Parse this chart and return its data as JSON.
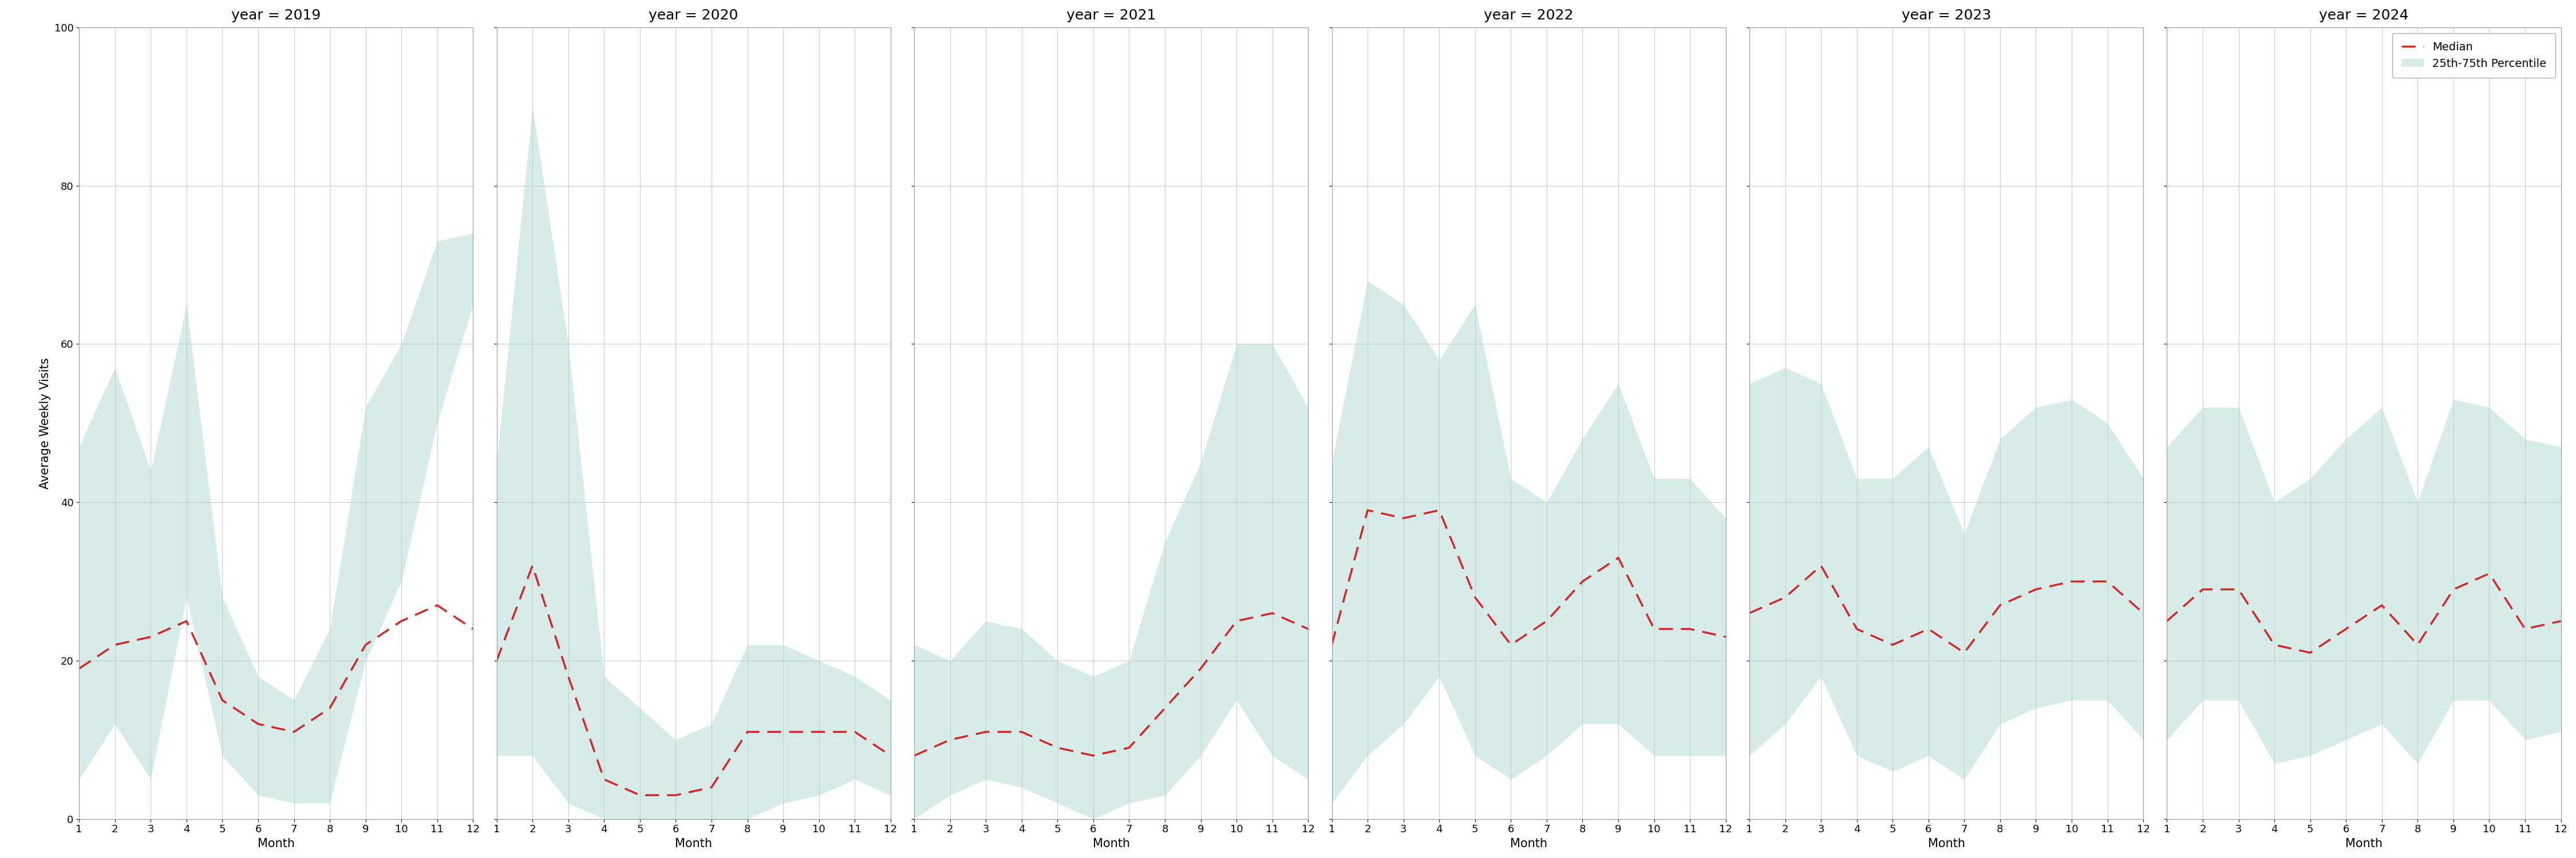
{
  "years": [
    2019,
    2020,
    2021,
    2022,
    2023,
    2024
  ],
  "months": [
    1,
    2,
    3,
    4,
    5,
    6,
    7,
    8,
    9,
    10,
    11,
    12
  ],
  "median": {
    "2019": [
      19,
      22,
      23,
      25,
      15,
      12,
      11,
      14,
      22,
      25,
      27,
      24
    ],
    "2020": [
      20,
      32,
      18,
      5,
      3,
      3,
      4,
      11,
      11,
      11,
      11,
      8
    ],
    "2021": [
      8,
      10,
      11,
      11,
      9,
      8,
      9,
      14,
      19,
      25,
      26,
      24
    ],
    "2022": [
      22,
      39,
      38,
      39,
      28,
      22,
      25,
      30,
      33,
      24,
      24,
      23
    ],
    "2023": [
      26,
      28,
      32,
      24,
      22,
      24,
      21,
      27,
      29,
      30,
      30,
      26
    ],
    "2024": [
      25,
      29,
      29,
      22,
      21,
      24,
      27,
      22,
      29,
      31,
      24,
      25
    ]
  },
  "p25": {
    "2019": [
      5,
      12,
      5,
      28,
      8,
      3,
      2,
      2,
      20,
      30,
      50,
      65
    ],
    "2020": [
      8,
      8,
      2,
      0,
      0,
      0,
      0,
      0,
      2,
      3,
      5,
      3
    ],
    "2021": [
      0,
      3,
      5,
      4,
      2,
      0,
      2,
      3,
      8,
      15,
      8,
      5
    ],
    "2022": [
      2,
      8,
      12,
      18,
      8,
      5,
      8,
      12,
      12,
      8,
      8,
      8
    ],
    "2023": [
      8,
      12,
      18,
      8,
      6,
      8,
      5,
      12,
      14,
      15,
      15,
      10
    ],
    "2024": [
      10,
      15,
      15,
      7,
      8,
      10,
      12,
      7,
      15,
      15,
      10,
      11
    ]
  },
  "p75": {
    "2019": [
      47,
      57,
      44,
      65,
      28,
      18,
      15,
      24,
      52,
      60,
      73,
      74
    ],
    "2020": [
      45,
      90,
      60,
      18,
      14,
      10,
      12,
      22,
      22,
      20,
      18,
      15
    ],
    "2021": [
      22,
      20,
      25,
      24,
      20,
      18,
      20,
      35,
      45,
      60,
      60,
      52
    ],
    "2022": [
      45,
      68,
      65,
      58,
      65,
      43,
      40,
      48,
      55,
      43,
      43,
      38
    ],
    "2023": [
      55,
      57,
      55,
      43,
      43,
      47,
      36,
      48,
      52,
      53,
      50,
      43
    ],
    "2024": [
      47,
      52,
      52,
      40,
      43,
      48,
      52,
      40,
      53,
      52,
      48,
      47
    ]
  },
  "fill_color": "#a8d5cc",
  "fill_alpha": 0.45,
  "line_color": "#d62728",
  "ylim": [
    0,
    100
  ],
  "yticks": [
    0,
    20,
    40,
    60,
    80,
    100
  ],
  "xlabel": "Month",
  "ylabel": "Average Weekly Visits",
  "legend_median": "Median",
  "legend_percentile": "25th-75th Percentile",
  "bg_color": "#ffffff",
  "grid_color": "#cccccc",
  "title_fontsize": 18,
  "label_fontsize": 15,
  "tick_fontsize": 13,
  "legend_fontsize": 14,
  "line_width": 2.5
}
